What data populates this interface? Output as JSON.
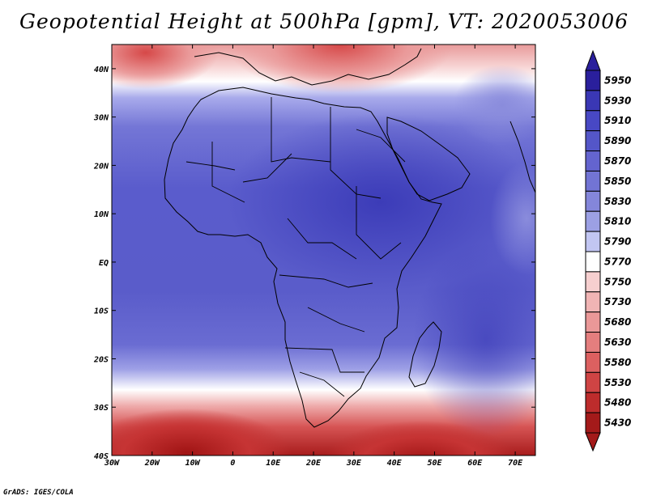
{
  "title": "Geopotential Height at 500hPa [gpm], VT: 2020053006",
  "credit": "GrADS: IGES/COLA",
  "map": {
    "lon_range": [
      -30,
      75
    ],
    "lat_range": [
      -40,
      45
    ],
    "lon_ticks": [
      "30W",
      "20W",
      "10W",
      "0",
      "10E",
      "20E",
      "30E",
      "40E",
      "50E",
      "60E",
      "70E"
    ],
    "lat_ticks": [
      "40S",
      "30S",
      "20S",
      "10S",
      "EQ",
      "10N",
      "20N",
      "30N",
      "40N"
    ]
  },
  "colorbar": {
    "levels": [
      "5950",
      "5930",
      "5910",
      "5890",
      "5870",
      "5850",
      "5830",
      "5810",
      "5790",
      "5770",
      "5750",
      "5730",
      "5680",
      "5630",
      "5580",
      "5530",
      "5480",
      "5430"
    ],
    "colors": [
      "#2a1f9c",
      "#3a37b4",
      "#4848c4",
      "#5456c8",
      "#6464cf",
      "#7274d4",
      "#8486da",
      "#9ca0e4",
      "#c2c6f2",
      "#ffffff",
      "#f6cfcf",
      "#f0b4b4",
      "#ea9898",
      "#e47e7e",
      "#dc6060",
      "#cf4444",
      "#bd2c2c",
      "#a41a1a"
    ]
  }
}
